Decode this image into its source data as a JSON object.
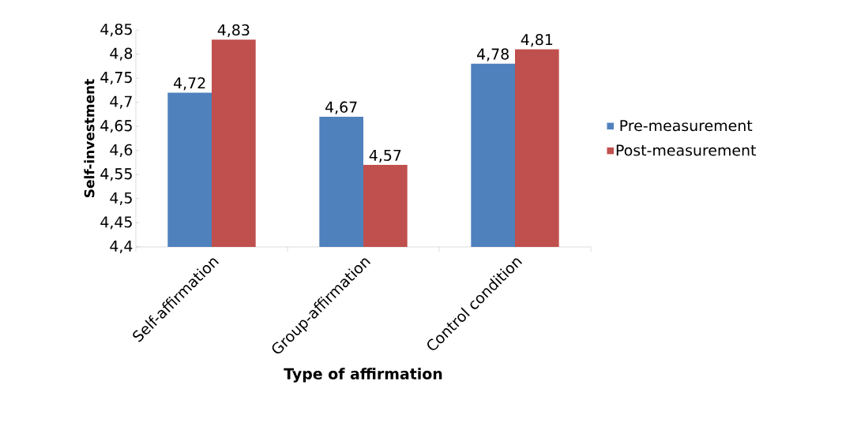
{
  "chart_data": {
    "type": "bar",
    "categories": [
      "Self-affirmation",
      "Group-affirmation",
      "Control condition"
    ],
    "series": [
      {
        "name": "Pre-measurement",
        "color": "#4f81bd",
        "values": [
          4.72,
          4.67,
          4.78
        ],
        "value_labels": [
          "4,72",
          "4,67",
          "4,78"
        ]
      },
      {
        "name": "Post-measurement",
        "color": "#c0504d",
        "values": [
          4.83,
          4.57,
          4.81
        ],
        "value_labels": [
          "4,83",
          "4,57",
          "4,81"
        ]
      }
    ],
    "xlabel": "Type of affirmation",
    "ylabel": "Self-investment",
    "ylim": [
      4.4,
      4.85
    ],
    "yticks": [
      {
        "value": 4.4,
        "label": "4,4"
      },
      {
        "value": 4.45,
        "label": "4,45"
      },
      {
        "value": 4.5,
        "label": "4,5"
      },
      {
        "value": 4.55,
        "label": "4,55"
      },
      {
        "value": 4.6,
        "label": "4,6"
      },
      {
        "value": 4.65,
        "label": "4,65"
      },
      {
        "value": 4.7,
        "label": "4,7"
      },
      {
        "value": 4.75,
        "label": "4,75"
      },
      {
        "value": 4.8,
        "label": "4,8"
      },
      {
        "value": 4.85,
        "label": "4,85"
      }
    ],
    "legend": "right"
  }
}
